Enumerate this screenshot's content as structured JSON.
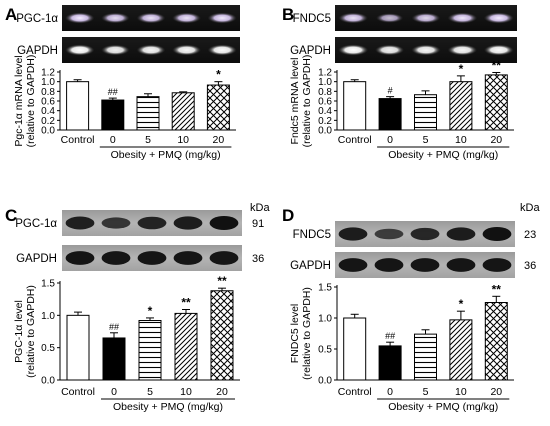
{
  "chart_data": [
    {
      "type": "bar",
      "panel": "A",
      "blot_labels": [
        "PGC-1α",
        "GAPDH"
      ],
      "kda_header": "",
      "kda_values": [],
      "ylabel": "Pgc-1α mRNA level\n(relative to GAPDH)",
      "ylim": [
        0,
        1.2
      ],
      "yticks": [
        "0.0",
        "0.2",
        "0.4",
        "0.6",
        "0.8",
        "1.0",
        "1.2"
      ],
      "categories": [
        "Control",
        "0",
        "5",
        "10",
        "20"
      ],
      "xlabel": "Obesity + PMQ (mg/kg)",
      "values": [
        1.0,
        0.62,
        0.69,
        0.77,
        0.93
      ],
      "errors": [
        0.04,
        0.04,
        0.06,
        0.02,
        0.07
      ],
      "annotations": [
        "",
        "##",
        "",
        "",
        "*"
      ],
      "fills": [
        "white",
        "black",
        "hlines",
        "diag",
        "cross"
      ]
    },
    {
      "type": "bar",
      "panel": "B",
      "blot_labels": [
        "FNDC5",
        "GAPDH"
      ],
      "kda_header": "",
      "kda_values": [],
      "ylabel": "Fndc5 mRNA level\n(relative to GAPDH)",
      "ylim": [
        0,
        1.2
      ],
      "yticks": [
        "0.0",
        "0.2",
        "0.4",
        "0.6",
        "0.8",
        "1.0",
        "1.2"
      ],
      "categories": [
        "Control",
        "0",
        "5",
        "10",
        "20"
      ],
      "xlabel": "Obesity + PMQ (mg/kg)",
      "values": [
        1.0,
        0.65,
        0.73,
        1.0,
        1.14
      ],
      "errors": [
        0.04,
        0.04,
        0.08,
        0.12,
        0.05
      ],
      "annotations": [
        "",
        "#",
        "",
        "*",
        "**"
      ],
      "fills": [
        "white",
        "black",
        "hlines",
        "diag",
        "cross"
      ]
    },
    {
      "type": "bar",
      "panel": "C",
      "blot_labels": [
        "PGC-1α",
        "GAPDH"
      ],
      "kda_header": "kDa",
      "kda_values": [
        "91",
        "36"
      ],
      "ylabel": "PGC-1α level\n(relative to GAPDH)",
      "ylim": [
        0,
        1.5
      ],
      "yticks": [
        "0.0",
        "0.5",
        "1.0",
        "1.5"
      ],
      "categories": [
        "Control",
        "0",
        "5",
        "10",
        "20"
      ],
      "xlabel": "Obesity + PMQ (mg/kg)",
      "values": [
        1.0,
        0.65,
        0.92,
        1.03,
        1.38
      ],
      "errors": [
        0.05,
        0.08,
        0.04,
        0.06,
        0.04
      ],
      "annotations": [
        "",
        "##",
        "*",
        "**",
        "**"
      ],
      "fills": [
        "white",
        "black",
        "hlines",
        "diag",
        "cross"
      ]
    },
    {
      "type": "bar",
      "panel": "D",
      "blot_labels": [
        "FNDC5",
        "GAPDH"
      ],
      "kda_header": "kDa",
      "kda_values": [
        "23",
        "36"
      ],
      "ylabel": "FNDC5 level\n(relative to GAPDH)",
      "ylim": [
        0,
        1.5
      ],
      "yticks": [
        "0.0",
        "0.5",
        "1.0",
        "1.5"
      ],
      "categories": [
        "Control",
        "0",
        "5",
        "10",
        "20"
      ],
      "xlabel": "Obesity + PMQ (mg/kg)",
      "values": [
        1.0,
        0.55,
        0.74,
        0.97,
        1.25
      ],
      "errors": [
        0.06,
        0.06,
        0.07,
        0.14,
        0.1
      ],
      "annotations": [
        "",
        "##",
        "",
        "*",
        "**"
      ],
      "fills": [
        "white",
        "black",
        "hlines",
        "diag",
        "cross"
      ]
    }
  ]
}
